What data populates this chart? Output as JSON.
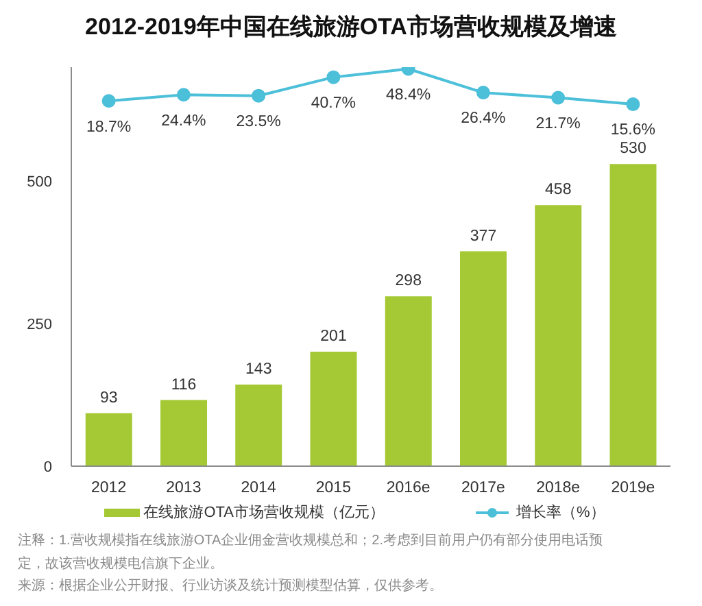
{
  "chart_data": {
    "type": "bar",
    "title": "2012-2019年中国在线旅游OTA市场营收规模及增速",
    "categories": [
      "2012",
      "2013",
      "2014",
      "2015",
      "2016e",
      "2017e",
      "2018e",
      "2019e"
    ],
    "series": [
      {
        "name": "在线旅游OTA市场营收规模（亿元）",
        "color": "#a5c934",
        "values": [
          93,
          116,
          143,
          201,
          298,
          377,
          458,
          530
        ]
      },
      {
        "name": "增长率（%）",
        "type": "line",
        "axis": "y2",
        "color": "#4cbfd9",
        "marker": "circle",
        "values": [
          18.7,
          24.4,
          23.5,
          40.7,
          48.4,
          26.4,
          21.7,
          15.6
        ],
        "value_labels": [
          "18.7%",
          "24.4%",
          "23.5%",
          "40.7%",
          "48.4%",
          "26.4%",
          "21.7%",
          "15.6%"
        ]
      }
    ],
    "ylim": [
      0,
      700
    ],
    "yticks": [
      0,
      250,
      500
    ],
    "y2lim": [
      -320,
      50
    ],
    "data_labels": true,
    "legend": "bottom",
    "annotations": [
      "注释：1.营收规模指在线旅游OTA企业佣金营收规模总和；2.考虑到目前用户仍有部分使用电话预定，故该营收规模电信旗下企业。",
      "来源：根据企业公开财报、行业访谈及统计预测模型估算，仅供参考。"
    ]
  }
}
